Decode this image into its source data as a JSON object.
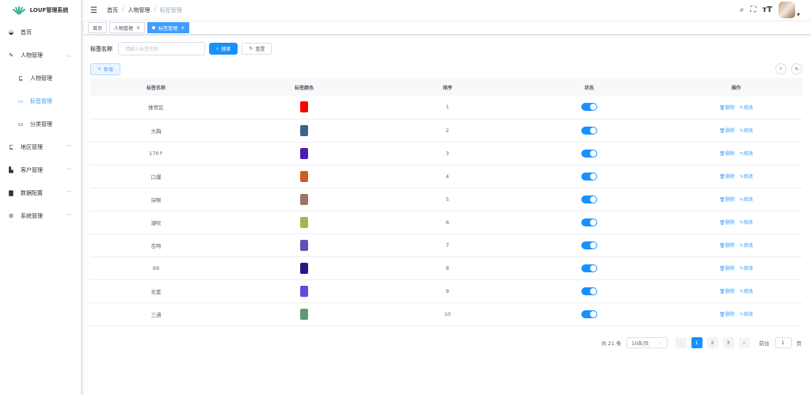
{
  "app": {
    "title": "LOUF管理系统"
  },
  "sidebar": {
    "items": [
      {
        "label": "首页",
        "icon": "dashboard-icon"
      },
      {
        "label": "人物管理",
        "icon": "edit-icon",
        "expanded": true,
        "children": [
          {
            "label": "人物管理",
            "icon": "tree-icon"
          },
          {
            "label": "标签管理",
            "icon": "list-icon",
            "active": true
          },
          {
            "label": "分类管理",
            "icon": "list-icon"
          }
        ]
      },
      {
        "label": "地区管理",
        "icon": "tree-icon"
      },
      {
        "label": "客户管理",
        "icon": "documents-icon"
      },
      {
        "label": "数据配置",
        "icon": "chart-icon"
      },
      {
        "label": "系统管理",
        "icon": "gear-icon"
      }
    ]
  },
  "header": {
    "breadcrumb": [
      "首页",
      "人物管理",
      "标签管理"
    ]
  },
  "tabs": [
    {
      "label": "首页"
    },
    {
      "label": "人物管理",
      "closable": true
    },
    {
      "label": "标签管理",
      "closable": true,
      "active": true
    }
  ],
  "search": {
    "label": "标签名称",
    "placeholder": "请输入标签名称",
    "search_label": "搜索",
    "reset_label": "重置"
  },
  "toolbar": {
    "add_label": "新增"
  },
  "table": {
    "columns": [
      "标签名称",
      "标签颜色",
      "排序",
      "状态",
      "操作"
    ],
    "delete_label": "删除",
    "edit_label": "修改",
    "rows": [
      {
        "name": "推荐区",
        "color": "#ff0000",
        "sort": "1",
        "enabled": true
      },
      {
        "name": "大胸",
        "color": "#3e6386",
        "sort": "2",
        "enabled": true
      },
      {
        "name": "170↑",
        "color": "#4f1bb8",
        "sort": "3",
        "enabled": true
      },
      {
        "name": "口爆",
        "color": "#d15c22",
        "sort": "4",
        "enabled": true
      },
      {
        "name": "深喉",
        "color": "#9b7766",
        "sort": "5",
        "enabled": true
      },
      {
        "name": "潮吹",
        "color": "#a9b24f",
        "sort": "6",
        "enabled": true
      },
      {
        "name": "舌吻",
        "color": "#5f54b5",
        "sort": "7",
        "enabled": true
      },
      {
        "name": "69",
        "color": "#231a85",
        "sort": "8",
        "enabled": true
      },
      {
        "name": "无套",
        "color": "#6049e0",
        "sort": "9",
        "enabled": true
      },
      {
        "name": "三通",
        "color": "#5b9b72",
        "sort": "10",
        "enabled": true
      }
    ]
  },
  "pagination": {
    "total": "共 21 条",
    "page_size": "10条/页",
    "pages": [
      "1",
      "2",
      "3"
    ],
    "current": "1",
    "goto_label": "前往",
    "goto_value": "1",
    "page_suffix": "页"
  }
}
